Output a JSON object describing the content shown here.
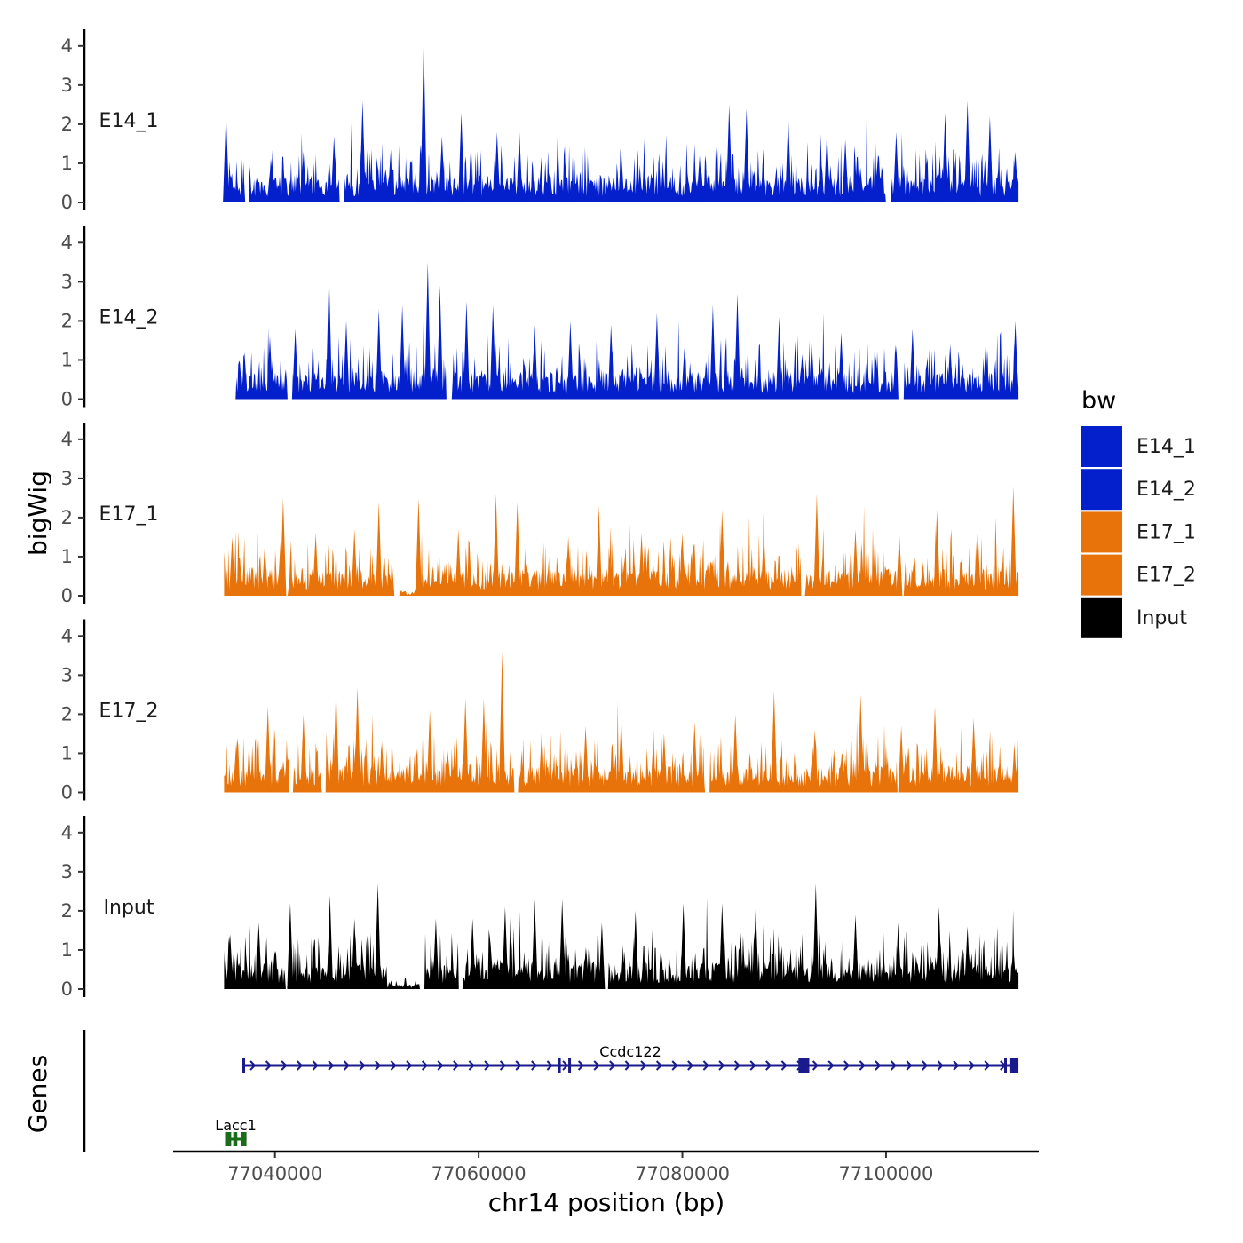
{
  "chart_data": {
    "type": "area",
    "description_title": "",
    "region": {
      "chrom": "chr14",
      "start": 77035000,
      "end": 77113000
    },
    "ylabel": "bigWig",
    "xlabel": "chr14 position (bp)",
    "genes_label": "Genes",
    "ylim": [
      0,
      4.2
    ],
    "y_ticks": [
      "0",
      "1",
      "2",
      "3",
      "4"
    ],
    "x_ticks": [
      {
        "value": 77040000,
        "label": "77040000"
      },
      {
        "value": 77060000,
        "label": "77060000"
      },
      {
        "value": 77080000,
        "label": "77080000"
      },
      {
        "value": 77100000,
        "label": "77100000"
      }
    ],
    "legend": {
      "title": "bw",
      "entries": [
        {
          "label": "E14_1",
          "color": "#0320CC"
        },
        {
          "label": "E14_2",
          "color": "#0320CC"
        },
        {
          "label": "E17_1",
          "color": "#E8730A"
        },
        {
          "label": "E17_2",
          "color": "#E8730A"
        },
        {
          "label": "Input",
          "color": "#000000"
        }
      ]
    },
    "series": [
      {
        "name": "E14_1",
        "color": "#0320CC",
        "peaks": [
          {
            "x": 77035200,
            "y": 2.3
          },
          {
            "x": 77042800,
            "y": 1.3
          },
          {
            "x": 77045800,
            "y": 1.7
          },
          {
            "x": 77048600,
            "y": 2.6
          },
          {
            "x": 77054600,
            "y": 4.2
          },
          {
            "x": 77056400,
            "y": 1.7
          },
          {
            "x": 77058300,
            "y": 2.3
          },
          {
            "x": 77061800,
            "y": 1.8
          },
          {
            "x": 77064000,
            "y": 1.8
          },
          {
            "x": 77068500,
            "y": 1.0
          },
          {
            "x": 77074000,
            "y": 1.3
          },
          {
            "x": 77081700,
            "y": 1.2
          },
          {
            "x": 77084600,
            "y": 2.5
          },
          {
            "x": 77086300,
            "y": 2.4
          },
          {
            "x": 77090400,
            "y": 2.2
          },
          {
            "x": 77094200,
            "y": 1.8
          },
          {
            "x": 77096000,
            "y": 1.6
          },
          {
            "x": 77101000,
            "y": 1.8
          },
          {
            "x": 77105800,
            "y": 2.3
          },
          {
            "x": 77108000,
            "y": 2.6
          },
          {
            "x": 77110200,
            "y": 2.2
          },
          {
            "x": 77112700,
            "y": 1.3
          }
        ],
        "gaps": [
          [
            77037000,
            77037500
          ],
          [
            77046300,
            77046800
          ],
          [
            77100000,
            77100500
          ]
        ]
      },
      {
        "name": "E14_2",
        "color": "#0320CC",
        "peaks": [
          {
            "x": 77037000,
            "y": 1.2
          },
          {
            "x": 77039500,
            "y": 1.6
          },
          {
            "x": 77042000,
            "y": 1.8
          },
          {
            "x": 77045300,
            "y": 3.3
          },
          {
            "x": 77047000,
            "y": 2.0
          },
          {
            "x": 77050200,
            "y": 2.3
          },
          {
            "x": 77052500,
            "y": 2.4
          },
          {
            "x": 77055000,
            "y": 3.5
          },
          {
            "x": 77056200,
            "y": 2.9
          },
          {
            "x": 77058800,
            "y": 2.5
          },
          {
            "x": 77061400,
            "y": 2.4
          },
          {
            "x": 77065500,
            "y": 1.9
          },
          {
            "x": 77069000,
            "y": 2.0
          },
          {
            "x": 77073000,
            "y": 1.9
          },
          {
            "x": 77077500,
            "y": 2.2
          },
          {
            "x": 77080200,
            "y": 1.3
          },
          {
            "x": 77083000,
            "y": 2.4
          },
          {
            "x": 77085400,
            "y": 2.7
          },
          {
            "x": 77089500,
            "y": 2.1
          },
          {
            "x": 77092700,
            "y": 1.5
          },
          {
            "x": 77095600,
            "y": 1.7
          },
          {
            "x": 77099000,
            "y": 1.1
          },
          {
            "x": 77102600,
            "y": 1.8
          },
          {
            "x": 77106300,
            "y": 1.4
          },
          {
            "x": 77109800,
            "y": 1.5
          },
          {
            "x": 77112700,
            "y": 2.0
          }
        ],
        "gaps": [
          [
            77035000,
            77036200
          ],
          [
            77041200,
            77041700
          ],
          [
            77056800,
            77057400
          ],
          [
            77101200,
            77101800
          ]
        ]
      },
      {
        "name": "E17_1",
        "color": "#E8730A",
        "peaks": [
          {
            "x": 77035800,
            "y": 1.5
          },
          {
            "x": 77039000,
            "y": 1.3
          },
          {
            "x": 77040800,
            "y": 2.5
          },
          {
            "x": 77044000,
            "y": 1.6
          },
          {
            "x": 77047800,
            "y": 1.7
          },
          {
            "x": 77050200,
            "y": 2.4
          },
          {
            "x": 77054100,
            "y": 2.5
          },
          {
            "x": 77058000,
            "y": 1.7
          },
          {
            "x": 77061700,
            "y": 2.6
          },
          {
            "x": 77063800,
            "y": 2.4
          },
          {
            "x": 77068800,
            "y": 1.5
          },
          {
            "x": 77071800,
            "y": 2.3
          },
          {
            "x": 77076000,
            "y": 1.6
          },
          {
            "x": 77080000,
            "y": 1.6
          },
          {
            "x": 77083900,
            "y": 2.2
          },
          {
            "x": 77088000,
            "y": 1.6
          },
          {
            "x": 77093200,
            "y": 2.6
          },
          {
            "x": 77097000,
            "y": 1.7
          },
          {
            "x": 77101300,
            "y": 1.6
          },
          {
            "x": 77105000,
            "y": 2.2
          },
          {
            "x": 77109000,
            "y": 1.7
          },
          {
            "x": 77112500,
            "y": 2.8
          }
        ],
        "gaps": [
          [
            77040900,
            77041300
          ],
          [
            77051700,
            77052200
          ],
          [
            77091600,
            77092100
          ],
          [
            77101300,
            77101800
          ]
        ],
        "dips": [
          [
            77052200,
            77054400
          ]
        ]
      },
      {
        "name": "E17_2",
        "color": "#E8730A",
        "peaks": [
          {
            "x": 77036200,
            "y": 1.3
          },
          {
            "x": 77039300,
            "y": 2.2
          },
          {
            "x": 77042800,
            "y": 2.0
          },
          {
            "x": 77046000,
            "y": 2.7
          },
          {
            "x": 77048100,
            "y": 2.7
          },
          {
            "x": 77050500,
            "y": 1.3
          },
          {
            "x": 77055200,
            "y": 2.1
          },
          {
            "x": 77058700,
            "y": 2.4
          },
          {
            "x": 77060500,
            "y": 2.4
          },
          {
            "x": 77062300,
            "y": 3.6
          },
          {
            "x": 77066200,
            "y": 1.6
          },
          {
            "x": 77070500,
            "y": 1.7
          },
          {
            "x": 77074000,
            "y": 1.9
          },
          {
            "x": 77078200,
            "y": 1.5
          },
          {
            "x": 77081200,
            "y": 1.8
          },
          {
            "x": 77085200,
            "y": 2.0
          },
          {
            "x": 77089000,
            "y": 2.6
          },
          {
            "x": 77093000,
            "y": 1.6
          },
          {
            "x": 77097500,
            "y": 2.5
          },
          {
            "x": 77101500,
            "y": 1.7
          },
          {
            "x": 77104800,
            "y": 2.2
          },
          {
            "x": 77108600,
            "y": 1.9
          },
          {
            "x": 77112600,
            "y": 1.2
          }
        ],
        "gaps": [
          [
            77041400,
            77041800
          ],
          [
            77044600,
            77045000
          ],
          [
            77063500,
            77063900
          ],
          [
            77082200,
            77082700
          ],
          [
            77101100,
            77101500
          ]
        ]
      },
      {
        "name": "Input",
        "color": "#000000",
        "peaks": [
          {
            "x": 77035600,
            "y": 1.4
          },
          {
            "x": 77038400,
            "y": 1.7
          },
          {
            "x": 77041500,
            "y": 2.2
          },
          {
            "x": 77045400,
            "y": 2.4
          },
          {
            "x": 77047800,
            "y": 1.8
          },
          {
            "x": 77050100,
            "y": 2.7
          },
          {
            "x": 77055800,
            "y": 1.8
          },
          {
            "x": 77059400,
            "y": 1.8
          },
          {
            "x": 77062600,
            "y": 2.1
          },
          {
            "x": 77065500,
            "y": 2.3
          },
          {
            "x": 77068200,
            "y": 2.3
          },
          {
            "x": 77072100,
            "y": 1.7
          },
          {
            "x": 77075400,
            "y": 2.0
          },
          {
            "x": 77080100,
            "y": 2.2
          },
          {
            "x": 77083900,
            "y": 2.2
          },
          {
            "x": 77087200,
            "y": 2.1
          },
          {
            "x": 77093100,
            "y": 2.7
          },
          {
            "x": 77097000,
            "y": 1.9
          },
          {
            "x": 77101200,
            "y": 1.7
          },
          {
            "x": 77105200,
            "y": 2.1
          },
          {
            "x": 77108000,
            "y": 1.6
          },
          {
            "x": 77112500,
            "y": 1.1
          }
        ],
        "gaps": [
          [
            77041000,
            77041400
          ],
          [
            77054200,
            77054700
          ],
          [
            77058000,
            77058400
          ],
          [
            77072200,
            77072700
          ]
        ],
        "dips": [
          [
            77051000,
            77054400
          ]
        ]
      }
    ],
    "genes": [
      {
        "name": "Ccdc122",
        "color": "#1A1A8C",
        "start": 77036800,
        "end": 77113000,
        "strand": "+",
        "row": 1,
        "exons": [
          [
            77036800,
            77037000
          ],
          [
            77067800,
            77067900
          ],
          [
            77068800,
            77068900
          ],
          [
            77091400,
            77092200
          ],
          [
            77092200,
            77092350
          ],
          [
            77111600,
            77111800
          ],
          [
            77112200,
            77113000
          ]
        ]
      },
      {
        "name": "Lacc1",
        "color": "#1A6B1A",
        "start": 77035100,
        "end": 77037200,
        "strand": "+",
        "row": 2,
        "exons": [
          [
            77035100,
            77035700
          ],
          [
            77035900,
            77036300
          ],
          [
            77036700,
            77037200
          ]
        ]
      }
    ]
  }
}
